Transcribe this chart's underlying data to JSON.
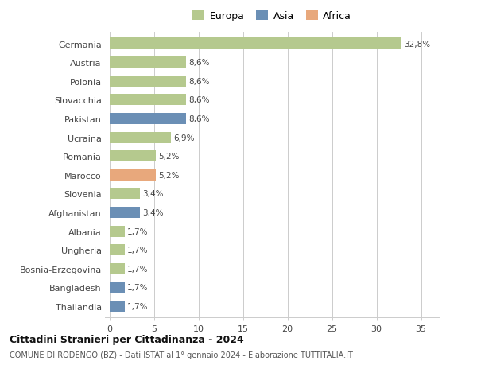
{
  "categories": [
    "Germania",
    "Austria",
    "Polonia",
    "Slovacchia",
    "Pakistan",
    "Ucraina",
    "Romania",
    "Marocco",
    "Slovenia",
    "Afghanistan",
    "Albania",
    "Ungheria",
    "Bosnia-Erzegovina",
    "Bangladesh",
    "Thailandia"
  ],
  "values": [
    32.8,
    8.6,
    8.6,
    8.6,
    8.6,
    6.9,
    5.2,
    5.2,
    3.4,
    3.4,
    1.7,
    1.7,
    1.7,
    1.7,
    1.7
  ],
  "labels": [
    "32,8%",
    "8,6%",
    "8,6%",
    "8,6%",
    "8,6%",
    "6,9%",
    "5,2%",
    "5,2%",
    "3,4%",
    "3,4%",
    "1,7%",
    "1,7%",
    "1,7%",
    "1,7%",
    "1,7%"
  ],
  "continent": [
    "Europa",
    "Europa",
    "Europa",
    "Europa",
    "Asia",
    "Europa",
    "Europa",
    "Africa",
    "Europa",
    "Asia",
    "Europa",
    "Europa",
    "Europa",
    "Asia",
    "Asia"
  ],
  "colors": {
    "Europa": "#b5c98e",
    "Asia": "#6b8fb5",
    "Africa": "#e8a87c"
  },
  "legend_order": [
    "Europa",
    "Asia",
    "Africa"
  ],
  "legend_colors": {
    "Europa": "#b5c98e",
    "Asia": "#6b8fb5",
    "Africa": "#e8a87c"
  },
  "title": "Cittadini Stranieri per Cittadinanza - 2024",
  "subtitle": "COMUNE DI RODENGO (BZ) - Dati ISTAT al 1° gennaio 2024 - Elaborazione TUTTITALIA.IT",
  "xlabel_ticks": [
    0,
    5,
    10,
    15,
    20,
    25,
    30,
    35
  ],
  "xlim": [
    -0.5,
    37
  ],
  "background_color": "#ffffff",
  "grid_color": "#cccccc",
  "bar_height": 0.6
}
